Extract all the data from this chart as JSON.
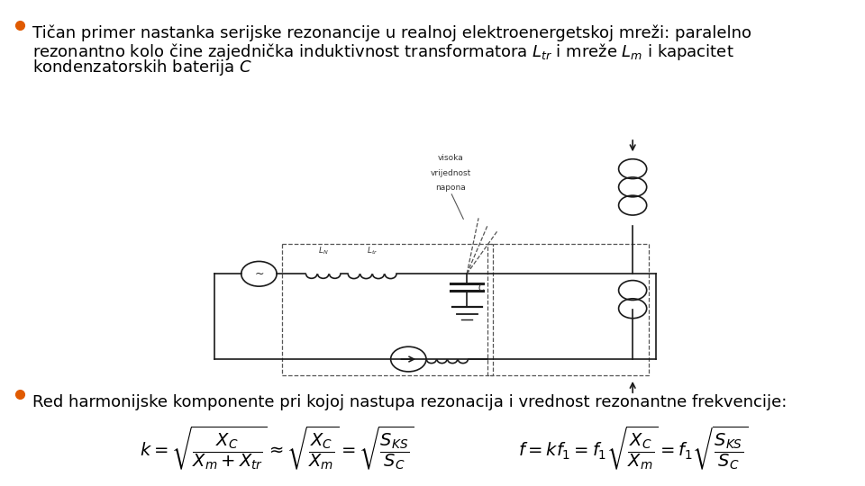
{
  "background_color": "#ffffff",
  "bullet_color": "#e05a00",
  "text_color": "#000000",
  "bullet1_line1": "Tičan primer nastanka serijske rezonancije u realnoj elektroenergetskoj mreži: paralelno",
  "bullet1_line2": "rezonantno kolo čine zajednička induktivnost transformatora $L_{tr}$ i mreže $L_m$ i kapacitet",
  "bullet1_line3": "kondenzatorskih baterija $C$",
  "bullet2_text": "Red harmonijske komponente pri kojoj nastupa rezonacija i vrednost rezonantne frekvencije:",
  "font_size_text": 13,
  "font_size_formula": 14
}
